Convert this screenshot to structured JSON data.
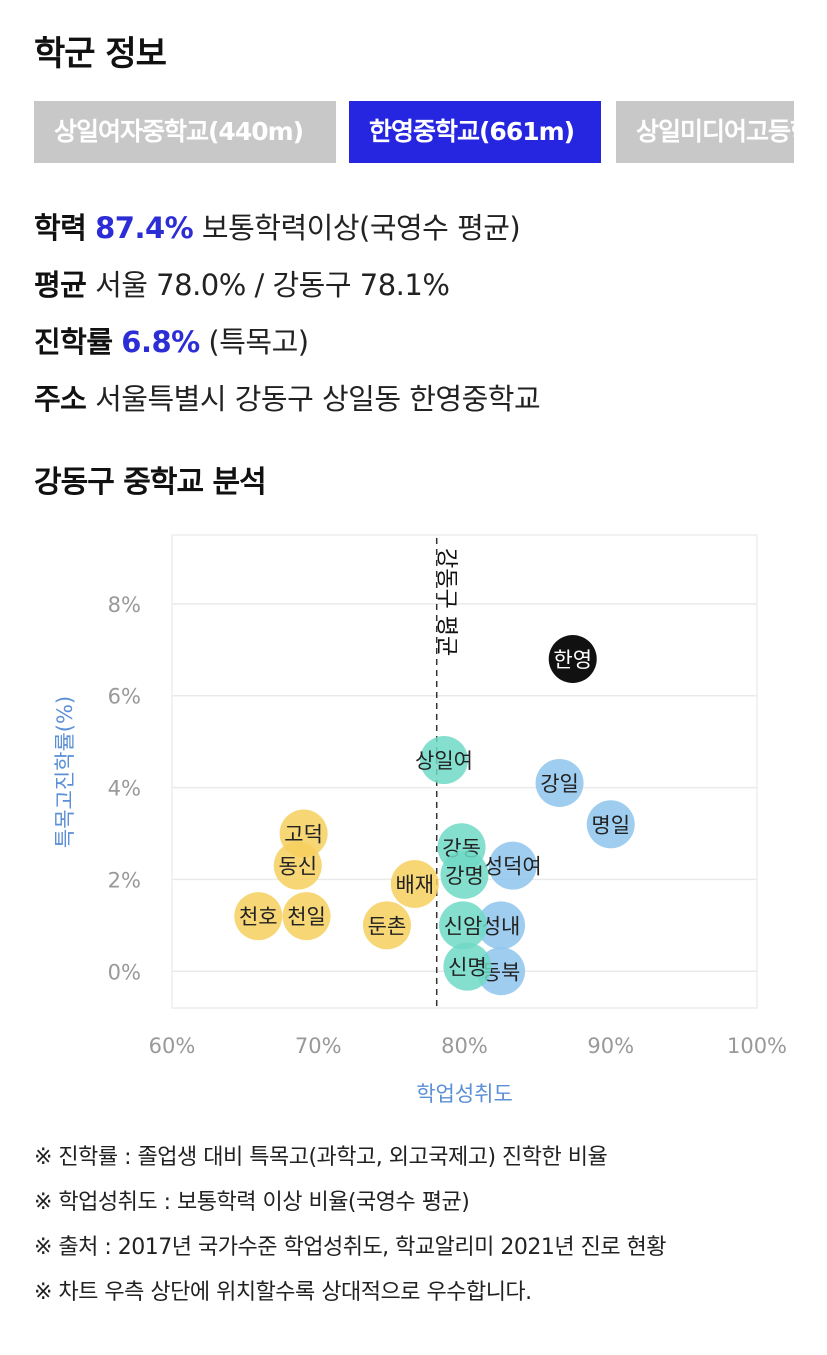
{
  "header": {
    "title": "학군 정보"
  },
  "tabs": [
    {
      "label": "상일여자중학교(440m)",
      "active": false
    },
    {
      "label": "한영중학교(661m)",
      "active": true
    },
    {
      "label": "상일미디어고등학교",
      "active": false
    }
  ],
  "info": {
    "achievement": {
      "label": "학력",
      "value": "87.4%",
      "desc": "보통학력이상(국영수 평균)"
    },
    "average": {
      "label": "평균",
      "value": "서울 78.0% / 강동구 78.1%"
    },
    "advancement": {
      "label": "진학률",
      "value": "6.8%",
      "desc": "(특목고)"
    },
    "address": {
      "label": "주소",
      "value": "서울특별시 강동구 상일동 한영중학교"
    }
  },
  "section_title": "강동구 중학교 분석",
  "chart_data": {
    "type": "scatter",
    "xlabel": "학업성취도",
    "ylabel": "특목고진학률(%)",
    "xlim": [
      60,
      100
    ],
    "ylim": [
      -0.8,
      9.5
    ],
    "xticks": [
      "60%",
      "70%",
      "80%",
      "90%",
      "100%"
    ],
    "yticks": [
      "0%",
      "2%",
      "4%",
      "6%",
      "8%"
    ],
    "grid": true,
    "reference_line": {
      "x": 78.1,
      "label": "강동구 평균"
    },
    "colors": {
      "blue": "#8ec4ec",
      "teal": "#6fd9c6",
      "yellow": "#f6cf5e",
      "black": "#111111"
    },
    "points": [
      {
        "name": "한영",
        "x": 87.4,
        "y": 6.8,
        "color": "black"
      },
      {
        "name": "상일여",
        "x": 78.6,
        "y": 4.6,
        "color": "teal"
      },
      {
        "name": "강일",
        "x": 86.5,
        "y": 4.1,
        "color": "blue"
      },
      {
        "name": "명일",
        "x": 90.0,
        "y": 3.2,
        "color": "blue"
      },
      {
        "name": "고덕",
        "x": 69.0,
        "y": 3.0,
        "color": "yellow"
      },
      {
        "name": "강동",
        "x": 79.8,
        "y": 2.7,
        "color": "teal"
      },
      {
        "name": "동신",
        "x": 68.6,
        "y": 2.3,
        "color": "yellow"
      },
      {
        "name": "성덕여",
        "x": 83.3,
        "y": 2.3,
        "color": "blue"
      },
      {
        "name": "강명",
        "x": 80.0,
        "y": 2.1,
        "color": "teal"
      },
      {
        "name": "배재",
        "x": 76.6,
        "y": 1.9,
        "color": "yellow"
      },
      {
        "name": "천호",
        "x": 65.9,
        "y": 1.2,
        "color": "yellow"
      },
      {
        "name": "천일",
        "x": 69.2,
        "y": 1.2,
        "color": "yellow"
      },
      {
        "name": "성내",
        "x": 82.5,
        "y": 1.0,
        "color": "blue"
      },
      {
        "name": "신암",
        "x": 79.9,
        "y": 1.0,
        "color": "teal"
      },
      {
        "name": "둔촌",
        "x": 74.7,
        "y": 1.0,
        "color": "yellow"
      },
      {
        "name": "동북",
        "x": 82.5,
        "y": 0.0,
        "color": "blue"
      },
      {
        "name": "신명",
        "x": 80.2,
        "y": 0.1,
        "color": "teal"
      }
    ]
  },
  "notes": [
    "※ 진학률 : 졸업생 대비 특목고(과학고, 외고국제고) 진학한 비율",
    "※ 학업성취도 : 보통학력 이상 비율(국영수 평균)",
    "※ 출처 : 2017년 국가수준 학업성취도, 학교알리미 2021년 진로 현황",
    "※ 차트 우측 상단에 위치할수록 상대적으로 우수합니다."
  ]
}
